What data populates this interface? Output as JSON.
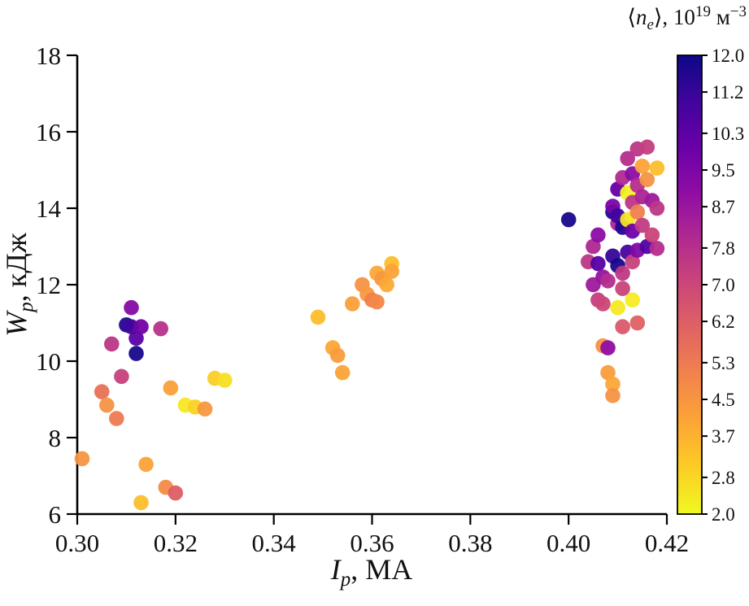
{
  "chart_data": {
    "type": "scatter",
    "xlabel": {
      "var": "I",
      "sub": "p",
      "rest": ", МА"
    },
    "ylabel": {
      "var": "W",
      "sub": "p",
      "rest": ", кДж"
    },
    "xlim": [
      0.3,
      0.42
    ],
    "ylim": [
      6,
      18
    ],
    "xticks": [
      "0.30",
      "0.32",
      "0.34",
      "0.36",
      "0.38",
      "0.40",
      "0.42"
    ],
    "yticks": [
      "6",
      "8",
      "10",
      "12",
      "14",
      "16",
      "18"
    ],
    "grid": false,
    "colorbar": {
      "label": {
        "lt": "⟨",
        "var": "n",
        "sub": "e",
        "mid": "⟩, 10",
        "exp": "19",
        "unit": " м",
        "unit_exp": "−3"
      },
      "range": [
        2.0,
        12.0
      ],
      "ticks": [
        "12.0",
        "11.2",
        "10.3",
        "9.5",
        "8.7",
        "7.8",
        "7.0",
        "6.2",
        "5.3",
        "4.5",
        "3.7",
        "2.8",
        "2.0"
      ],
      "colormap": "plasma_r",
      "stops": [
        "#f0f921",
        "#fcce25",
        "#fca636",
        "#f2844b",
        "#e16462",
        "#cc4778",
        "#b12a90",
        "#8f0da4",
        "#6a00a8",
        "#41049d",
        "#0d0887"
      ]
    },
    "points_format": [
      "Ip_MA",
      "Wp_kJ",
      "ne_1e19_m3"
    ],
    "points": [
      [
        0.301,
        7.45,
        4.5
      ],
      [
        0.305,
        9.2,
        5.6
      ],
      [
        0.306,
        8.85,
        4.6
      ],
      [
        0.307,
        10.45,
        7.6
      ],
      [
        0.308,
        8.5,
        5.3
      ],
      [
        0.309,
        9.6,
        7.2
      ],
      [
        0.31,
        10.95,
        11.6
      ],
      [
        0.311,
        10.9,
        11.0
      ],
      [
        0.311,
        11.4,
        9.3
      ],
      [
        0.312,
        10.2,
        11.8
      ],
      [
        0.312,
        10.6,
        10.4
      ],
      [
        0.313,
        10.9,
        9.8
      ],
      [
        0.313,
        6.3,
        3.4
      ],
      [
        0.314,
        7.3,
        4.1
      ],
      [
        0.317,
        10.85,
        7.8
      ],
      [
        0.318,
        6.7,
        4.8
      ],
      [
        0.32,
        6.55,
        6.2
      ],
      [
        0.319,
        9.3,
        4.2
      ],
      [
        0.322,
        8.85,
        2.4
      ],
      [
        0.324,
        8.8,
        2.9
      ],
      [
        0.326,
        8.75,
        4.4
      ],
      [
        0.328,
        9.55,
        3.0
      ],
      [
        0.33,
        9.5,
        2.6
      ],
      [
        0.349,
        11.15,
        3.4
      ],
      [
        0.352,
        10.35,
        4.0
      ],
      [
        0.353,
        10.15,
        4.3
      ],
      [
        0.354,
        9.7,
        4.1
      ],
      [
        0.356,
        11.5,
        4.2
      ],
      [
        0.358,
        12.0,
        4.6
      ],
      [
        0.359,
        11.75,
        4.4
      ],
      [
        0.36,
        11.6,
        5.1
      ],
      [
        0.361,
        11.55,
        4.9
      ],
      [
        0.361,
        12.3,
        4.0
      ],
      [
        0.362,
        12.15,
        4.4
      ],
      [
        0.363,
        12.0,
        3.9
      ],
      [
        0.364,
        12.55,
        3.4
      ],
      [
        0.364,
        12.35,
        4.1
      ],
      [
        0.4,
        13.7,
        11.8
      ],
      [
        0.404,
        12.6,
        7.6
      ],
      [
        0.405,
        12.0,
        8.6
      ],
      [
        0.405,
        13.0,
        8.1
      ],
      [
        0.406,
        13.3,
        9.1
      ],
      [
        0.406,
        12.55,
        10.5
      ],
      [
        0.406,
        11.6,
        7.3
      ],
      [
        0.407,
        10.4,
        4.6
      ],
      [
        0.407,
        11.5,
        7.0
      ],
      [
        0.407,
        12.2,
        8.8
      ],
      [
        0.408,
        9.7,
        4.3
      ],
      [
        0.408,
        10.35,
        9.0
      ],
      [
        0.408,
        12.1,
        7.9
      ],
      [
        0.409,
        9.4,
        4.0
      ],
      [
        0.409,
        9.1,
        4.6
      ],
      [
        0.409,
        13.9,
        11.5
      ],
      [
        0.409,
        14.05,
        9.6
      ],
      [
        0.409,
        12.75,
        11.2
      ],
      [
        0.41,
        13.6,
        8.1
      ],
      [
        0.41,
        14.5,
        10.1
      ],
      [
        0.41,
        13.8,
        11.0
      ],
      [
        0.41,
        12.5,
        11.8
      ],
      [
        0.41,
        11.4,
        2.4
      ],
      [
        0.411,
        14.8,
        8.0
      ],
      [
        0.411,
        13.5,
        11.6
      ],
      [
        0.411,
        12.3,
        7.5
      ],
      [
        0.411,
        11.9,
        7.1
      ],
      [
        0.411,
        10.9,
        6.4
      ],
      [
        0.412,
        15.3,
        7.9
      ],
      [
        0.412,
        14.4,
        2.2
      ],
      [
        0.412,
        13.7,
        2.5
      ],
      [
        0.412,
        12.85,
        10.8
      ],
      [
        0.413,
        14.9,
        9.1
      ],
      [
        0.413,
        14.15,
        7.6
      ],
      [
        0.413,
        13.4,
        9.9
      ],
      [
        0.413,
        12.6,
        7.2
      ],
      [
        0.413,
        11.6,
        2.3
      ],
      [
        0.414,
        15.55,
        7.6
      ],
      [
        0.414,
        14.6,
        7.9
      ],
      [
        0.414,
        13.9,
        5.1
      ],
      [
        0.414,
        12.9,
        9.4
      ],
      [
        0.414,
        11.0,
        6.1
      ],
      [
        0.415,
        15.1,
        4.1
      ],
      [
        0.415,
        14.3,
        8.2
      ],
      [
        0.415,
        13.55,
        7.4
      ],
      [
        0.416,
        15.6,
        7.3
      ],
      [
        0.416,
        14.75,
        4.6
      ],
      [
        0.416,
        13.0,
        10.6
      ],
      [
        0.417,
        14.2,
        8.6
      ],
      [
        0.417,
        13.3,
        7.1
      ],
      [
        0.418,
        15.05,
        3.4
      ],
      [
        0.418,
        14.0,
        7.6
      ],
      [
        0.418,
        12.95,
        7.9
      ]
    ]
  }
}
